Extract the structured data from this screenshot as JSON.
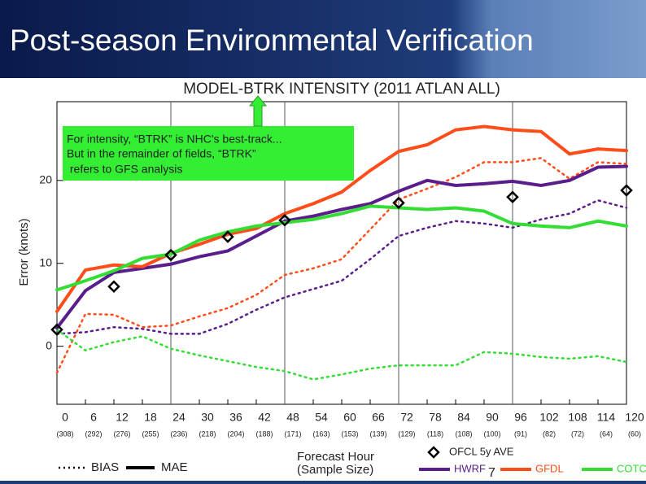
{
  "slide_title": "Post-season Environmental Verification",
  "page_number": "7",
  "chart_data": {
    "type": "line",
    "title": "MODEL-BTRK INTENSITY (2011 ATLAN ALL)",
    "ylabel": "Error (knots)",
    "xlabel": [
      "Forecast Hour",
      "(Sample Size)"
    ],
    "annotation": [
      "For intensity, “BTRK” is NHC's best-track...",
      "But in the remainder of fields, “BTRK”",
      " refers to GFS analysis"
    ],
    "x": [
      0,
      6,
      12,
      18,
      24,
      30,
      36,
      42,
      48,
      54,
      60,
      66,
      72,
      78,
      84,
      90,
      96,
      102,
      108,
      114,
      120
    ],
    "xticks": [
      0,
      6,
      12,
      18,
      24,
      30,
      36,
      42,
      48,
      54,
      60,
      66,
      72,
      78,
      84,
      90,
      96,
      102,
      108,
      114,
      120
    ],
    "sample_sizes": [
      "(308)",
      "(292)",
      "(276)",
      "(255)",
      "(236)",
      "(218)",
      "(204)",
      "(188)",
      "(171)",
      "(163)",
      "(153)",
      "(139)",
      "(129)",
      "(118)",
      "(108)",
      "(100)",
      "(91)",
      "(82)",
      "(72)",
      "(64)",
      "(60)"
    ],
    "xlim": [
      0,
      120
    ],
    "ylim": [
      -7,
      29.5
    ],
    "yticks": [
      0,
      10,
      20
    ],
    "vlines": [
      24,
      48,
      72,
      96
    ],
    "line_styles": {
      "bias": "BIAS",
      "mae": "MAE"
    },
    "models": [
      {
        "name": "HWRF",
        "color": "#5a1d8c",
        "mae": [
          2.2,
          6.7,
          8.9,
          9.4,
          9.9,
          10.8,
          11.5,
          13.3,
          15.1,
          15.7,
          16.5,
          17.2,
          18.7,
          20,
          19.4,
          19.6,
          19.9,
          19.4,
          20,
          21.6,
          21.7
        ],
        "bias": [
          1.5,
          1.7,
          2.3,
          2.1,
          1.5,
          1.5,
          2.7,
          4.4,
          5.9,
          6.9,
          7.9,
          10.5,
          13.3,
          14.3,
          15.1,
          14.8,
          14.3,
          15.3,
          16,
          17.6,
          16.7
        ]
      },
      {
        "name": "GFDL",
        "color": "#ff4d1a",
        "mae": [
          4.2,
          9.2,
          9.8,
          9.6,
          11.2,
          12.3,
          13.5,
          14.2,
          16,
          17.2,
          18.6,
          21.2,
          23.5,
          24.3,
          26.1,
          26.5,
          26.1,
          25.9,
          23.2,
          23.8,
          23.6
        ],
        "bias": [
          -3.2,
          3.9,
          3.8,
          2.3,
          2.5,
          3.6,
          4.6,
          6.2,
          8.6,
          9.4,
          10.5,
          14.1,
          17.7,
          19,
          20.4,
          22.2,
          22.2,
          22.7,
          20.2,
          22.2,
          22
        ]
      },
      {
        "name": "COTC",
        "color": "#33dd33",
        "mae": [
          6.8,
          7.9,
          9.1,
          10.6,
          11.1,
          12.8,
          13.8,
          14.5,
          14.9,
          15.3,
          16,
          16.9,
          16.7,
          16.5,
          16.7,
          16.3,
          14.8,
          14.5,
          14.3,
          15.1,
          14.5
        ],
        "bias": [
          2,
          -0.5,
          0.5,
          1.2,
          -0.3,
          -1.1,
          -1.8,
          -2.5,
          -3,
          -4,
          -3.4,
          -2.7,
          -2.3,
          -2.3,
          -2.3,
          -0.7,
          -0.9,
          -1.3,
          -1.5,
          -1.2,
          -1.9
        ]
      }
    ],
    "ofcl": {
      "name": "OFCL 5y AVE",
      "x": [
        0,
        12,
        24,
        36,
        48,
        72,
        96,
        120
      ],
      "values": [
        2,
        7.2,
        11,
        13.2,
        15.2,
        17.3,
        18,
        18.8
      ]
    }
  }
}
